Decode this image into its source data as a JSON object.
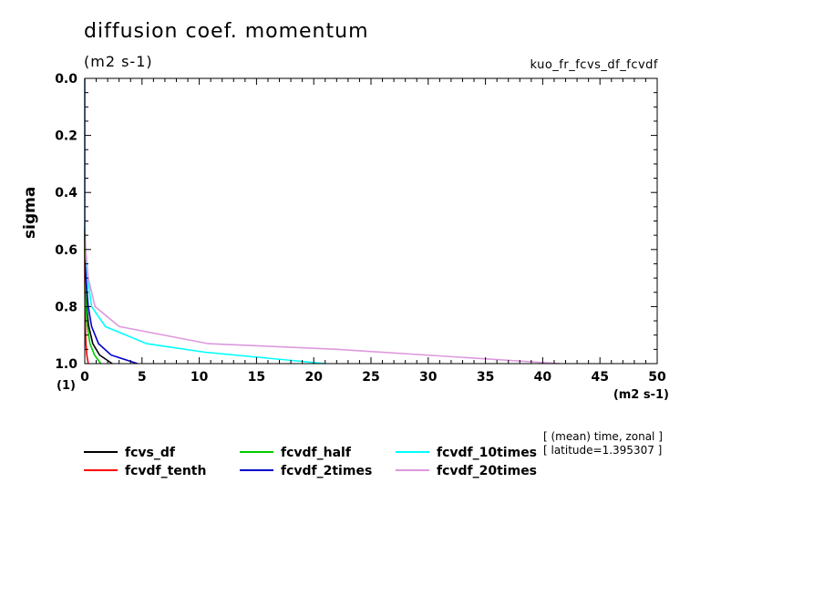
{
  "title": "diffusion coef. momentum",
  "units": "(m2 s-1)",
  "experiment": "kuo_fr_fcvs_df_fcvdf",
  "notes": [
    "[ (mean) time, zonal ]",
    "[ latitude=1.395307 ]"
  ],
  "chart_data": {
    "type": "line",
    "xlabel": "(m2 s-1)",
    "ylabel": "sigma",
    "yunit": "(1)",
    "xlim": [
      0,
      50
    ],
    "ylim": [
      0.0,
      1.0
    ],
    "y_inverted": true,
    "grid": false,
    "legend_position": "bottom-left",
    "xticks": [
      0,
      5,
      10,
      15,
      20,
      25,
      30,
      35,
      40,
      45,
      50
    ],
    "yticks": [
      "0.0",
      "0.2",
      "0.4",
      "0.6",
      "0.8",
      "1.0"
    ],
    "series": [
      {
        "name": "fcvs_df",
        "color": "#000000",
        "points": [
          [
            2.4,
            1.0
          ],
          [
            1.3,
            0.97
          ],
          [
            0.7,
            0.93
          ],
          [
            0.35,
            0.87
          ],
          [
            0.15,
            0.8
          ],
          [
            0.05,
            0.7
          ],
          [
            0.0,
            0.6
          ],
          [
            0.0,
            0.0
          ]
        ]
      },
      {
        "name": "fcvdf_tenth",
        "color": "#ff0000",
        "points": [
          [
            0.3,
            1.0
          ],
          [
            0.18,
            0.97
          ],
          [
            0.1,
            0.93
          ],
          [
            0.05,
            0.87
          ],
          [
            0.02,
            0.8
          ],
          [
            0.0,
            0.7
          ],
          [
            0.0,
            0.0
          ]
        ]
      },
      {
        "name": "fcvdf_half",
        "color": "#00cc00",
        "points": [
          [
            1.4,
            1.0
          ],
          [
            0.85,
            0.97
          ],
          [
            0.45,
            0.93
          ],
          [
            0.22,
            0.87
          ],
          [
            0.1,
            0.8
          ],
          [
            0.03,
            0.7
          ],
          [
            0.0,
            0.6
          ],
          [
            0.0,
            0.0
          ]
        ]
      },
      {
        "name": "fcvdf_2times",
        "color": "#0000cc",
        "points": [
          [
            4.6,
            1.0
          ],
          [
            2.3,
            0.97
          ],
          [
            1.2,
            0.93
          ],
          [
            0.6,
            0.87
          ],
          [
            0.3,
            0.8
          ],
          [
            0.1,
            0.7
          ],
          [
            0.02,
            0.6
          ],
          [
            0.0,
            0.5
          ],
          [
            0.0,
            0.0
          ]
        ]
      },
      {
        "name": "fcvdf_10times",
        "color": "#00ffff",
        "points": [
          [
            21.0,
            1.0
          ],
          [
            10.5,
            0.96
          ],
          [
            5.4,
            0.93
          ],
          [
            1.8,
            0.87
          ],
          [
            0.6,
            0.8
          ],
          [
            0.25,
            0.7
          ],
          [
            0.05,
            0.6
          ],
          [
            0.0,
            0.5
          ],
          [
            0.0,
            0.0
          ]
        ]
      },
      {
        "name": "fcvdf_20times",
        "color": "#dd99dd",
        "points": [
          [
            41.5,
            1.0
          ],
          [
            22.0,
            0.95
          ],
          [
            10.8,
            0.93
          ],
          [
            3.0,
            0.87
          ],
          [
            0.9,
            0.8
          ],
          [
            0.3,
            0.7
          ],
          [
            0.08,
            0.6
          ],
          [
            0.0,
            0.5
          ],
          [
            0.0,
            0.0
          ]
        ]
      }
    ]
  }
}
